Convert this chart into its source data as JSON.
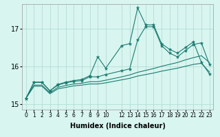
{
  "xlabel": "Humidex (Indice chaleur)",
  "background_color": "#d8f5f0",
  "grid_color": "#aed8d0",
  "line_color": "#1a7a6e",
  "xlim": [
    -0.5,
    23.5
  ],
  "ylim": [
    14.85,
    17.65
  ],
  "yticks": [
    15,
    16,
    17
  ],
  "xticks": [
    0,
    1,
    2,
    3,
    4,
    5,
    6,
    7,
    8,
    9,
    10,
    12,
    13,
    14,
    15,
    16,
    17,
    18,
    19,
    20,
    21,
    22,
    23
  ],
  "lines": [
    {
      "x": [
        0,
        1,
        2,
        3,
        4,
        5,
        6,
        7,
        8,
        9,
        10,
        12,
        13,
        14,
        15,
        16,
        17,
        18,
        19,
        20,
        21,
        22,
        23
      ],
      "y": [
        15.15,
        15.58,
        15.58,
        15.35,
        15.52,
        15.58,
        15.62,
        15.65,
        15.75,
        16.25,
        15.95,
        16.55,
        16.6,
        17.55,
        17.1,
        17.1,
        16.6,
        16.45,
        16.35,
        16.5,
        16.65,
        16.1,
        15.8
      ],
      "marker": true
    },
    {
      "x": [
        0,
        1,
        2,
        3,
        4,
        5,
        6,
        7,
        8,
        9,
        10,
        12,
        13,
        14,
        15,
        16,
        17,
        18,
        19,
        20,
        21,
        22,
        23
      ],
      "y": [
        15.15,
        15.57,
        15.57,
        15.35,
        15.5,
        15.56,
        15.6,
        15.62,
        15.72,
        15.72,
        15.78,
        15.88,
        15.93,
        16.7,
        17.05,
        17.05,
        16.55,
        16.35,
        16.25,
        16.42,
        16.58,
        16.62,
        16.05
      ],
      "marker": true
    },
    {
      "x": [
        0,
        1,
        2,
        3,
        4,
        5,
        6,
        7,
        8,
        9,
        10,
        12,
        13,
        14,
        15,
        16,
        17,
        18,
        19,
        20,
        21,
        22,
        23
      ],
      "y": [
        15.15,
        15.5,
        15.5,
        15.3,
        15.44,
        15.49,
        15.53,
        15.55,
        15.59,
        15.59,
        15.63,
        15.72,
        15.77,
        15.84,
        15.89,
        15.94,
        16.0,
        16.05,
        16.1,
        16.17,
        16.23,
        16.28,
        16.1
      ],
      "marker": false
    },
    {
      "x": [
        0,
        1,
        2,
        3,
        4,
        5,
        6,
        7,
        8,
        9,
        10,
        12,
        13,
        14,
        15,
        16,
        17,
        18,
        19,
        20,
        21,
        22,
        23
      ],
      "y": [
        15.15,
        15.47,
        15.47,
        15.27,
        15.4,
        15.44,
        15.48,
        15.5,
        15.53,
        15.53,
        15.56,
        15.64,
        15.68,
        15.74,
        15.78,
        15.82,
        15.87,
        15.91,
        15.95,
        16.0,
        16.05,
        16.08,
        15.85
      ],
      "marker": false
    }
  ]
}
